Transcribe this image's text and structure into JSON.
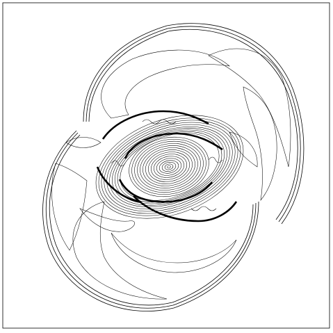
{
  "figure": {
    "type": "contour-plot",
    "line_color": "#000000",
    "background": "#ffffff",
    "has_axes_labels": false,
    "has_title": false
  }
}
